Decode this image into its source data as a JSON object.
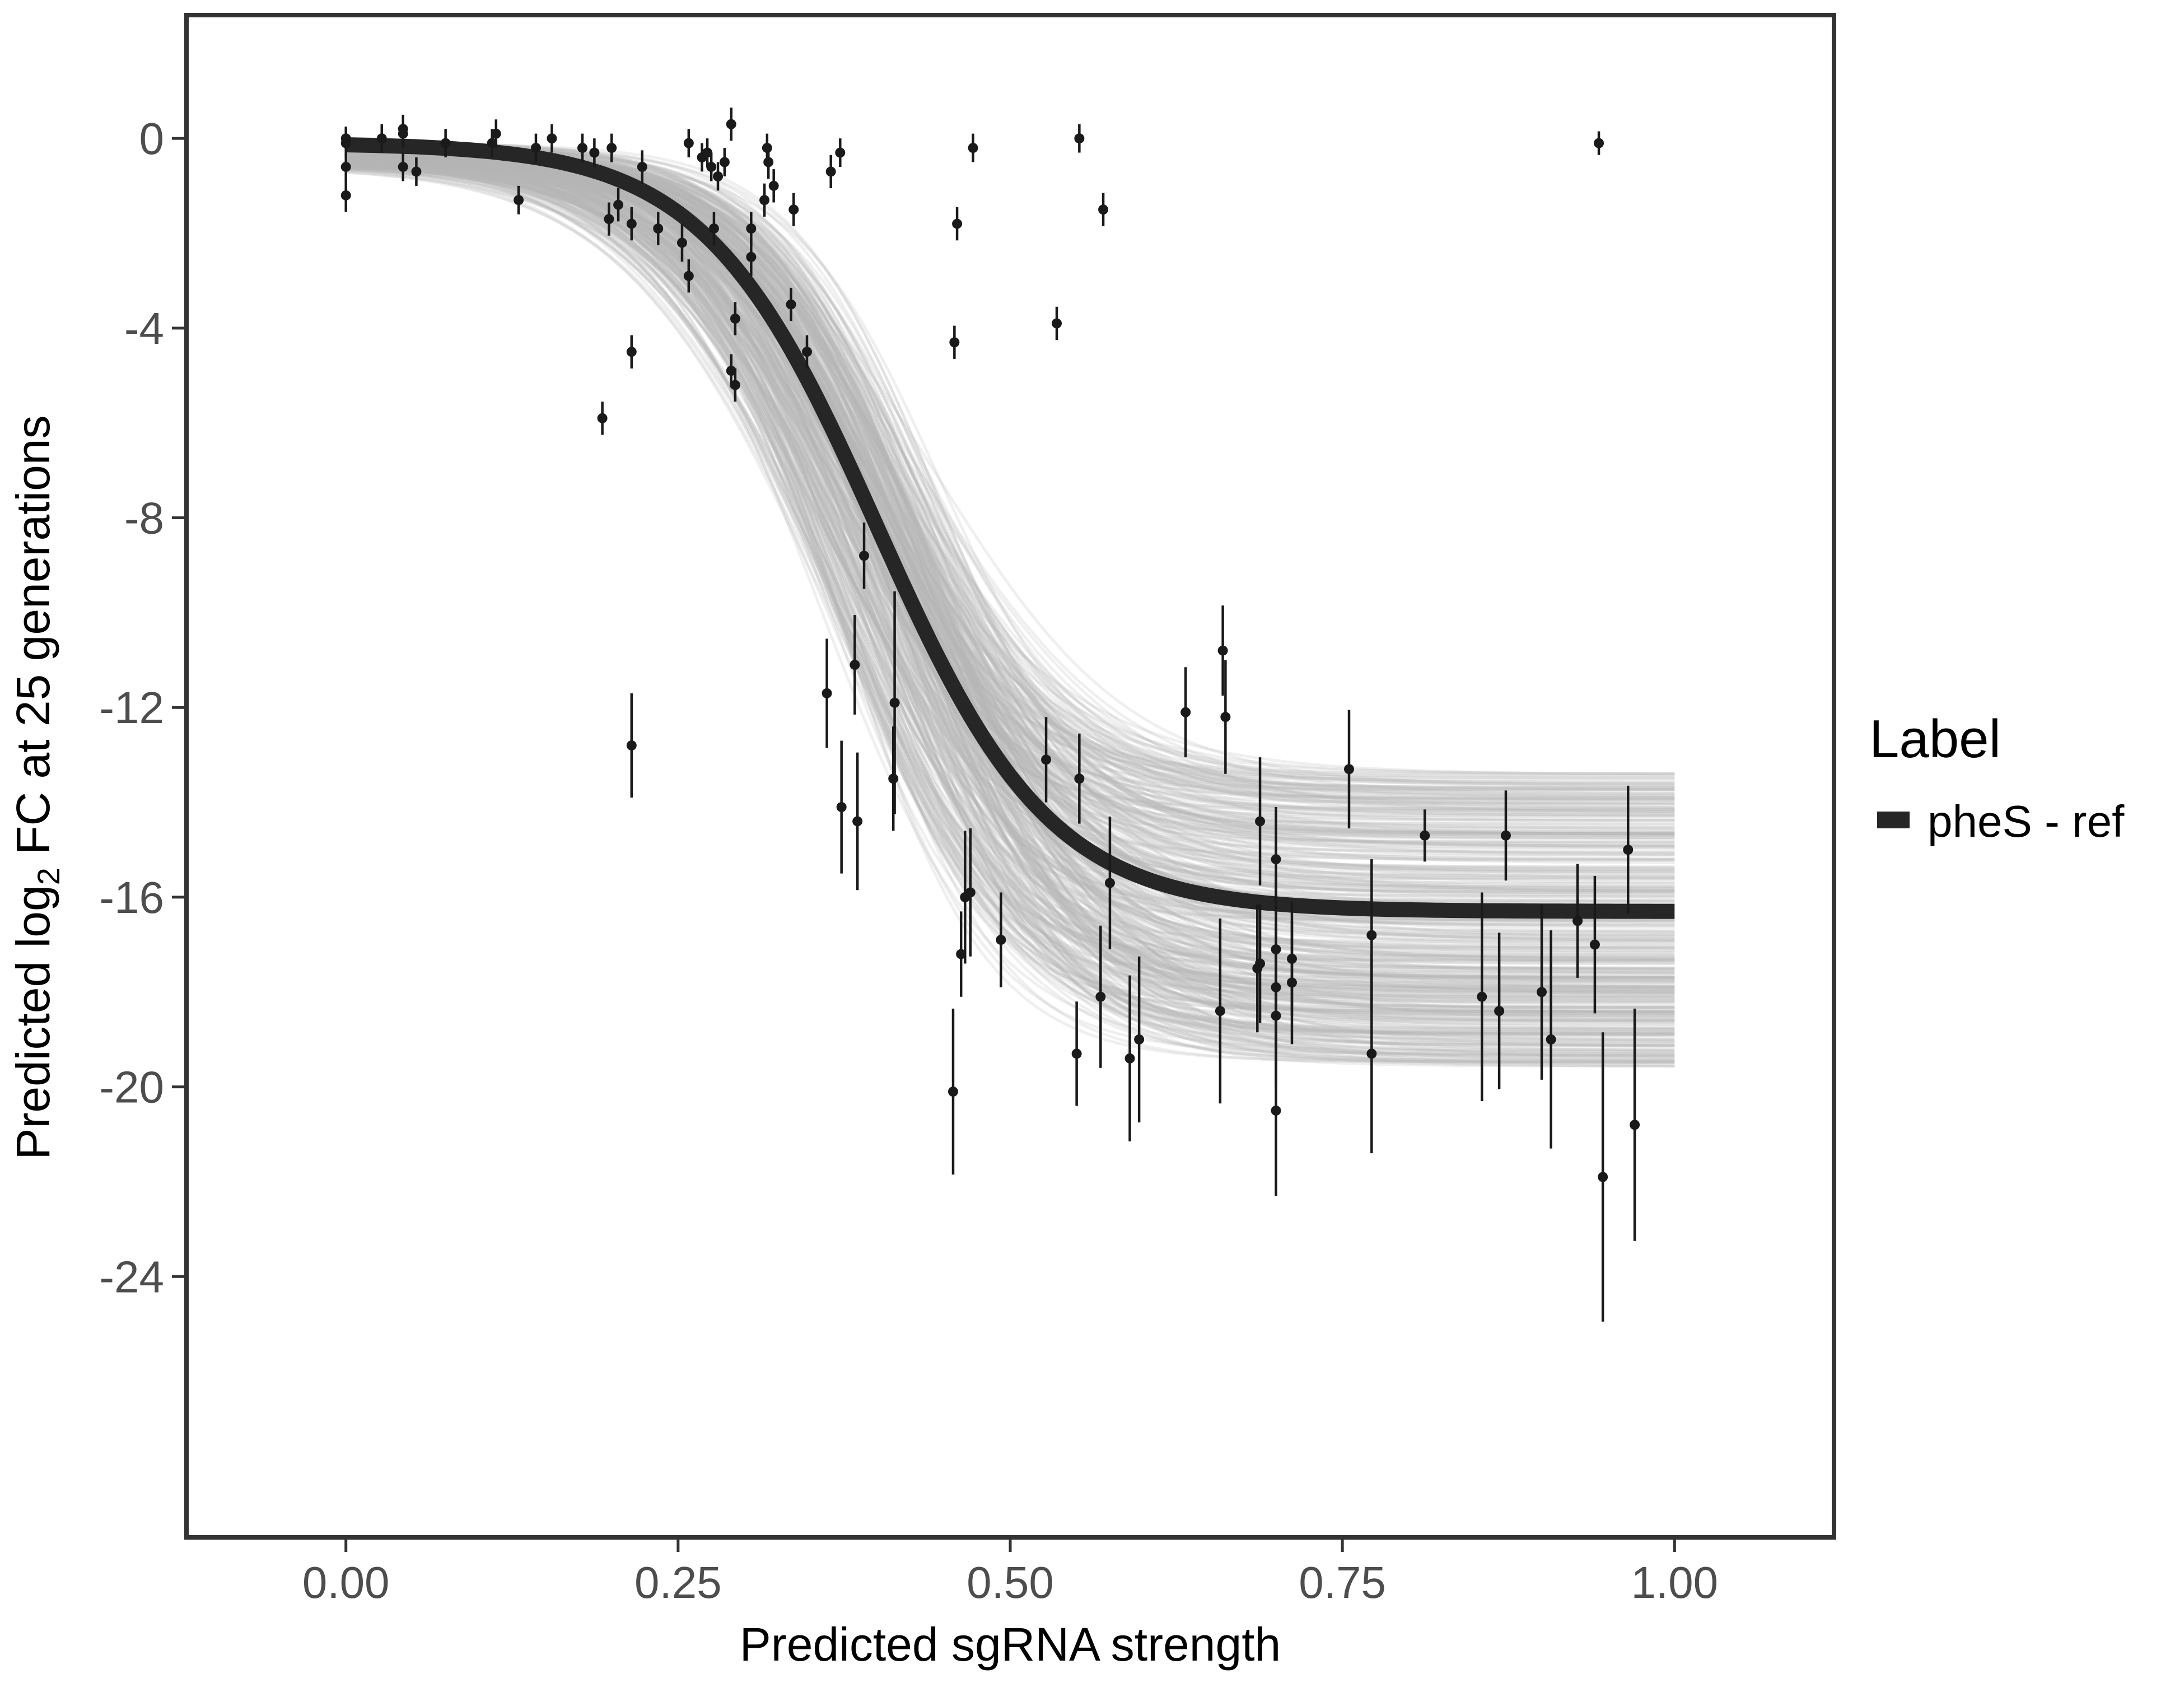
{
  "chart_data": {
    "type": "scatter",
    "xlabel": "Predicted sgRNA strength",
    "ylabel_parts": {
      "before": "Predicted  log",
      "sub": "2",
      "after": " FC at 25 generations"
    },
    "xlim": [
      -0.12,
      1.12
    ],
    "ylim": [
      -29.5,
      2.6
    ],
    "x_ticks": [
      0,
      0.25,
      0.5,
      0.75,
      1
    ],
    "x_tick_labels": [
      "0.00",
      "0.25",
      "0.50",
      "0.75",
      "1.00"
    ],
    "y_ticks": [
      0,
      -4,
      -8,
      -12,
      -16,
      -20,
      -24
    ],
    "y_tick_labels": [
      "0",
      "-4",
      "-8",
      "-12",
      "-16",
      "-20",
      "-24"
    ],
    "grid": false,
    "legend": {
      "title": "Label",
      "position": "right",
      "entries": [
        {
          "label": "pheS - ref",
          "color": "#262626"
        }
      ]
    },
    "colors": {
      "fit_line": "#262626",
      "posterior_band": "#b4b4b4",
      "points": "#1a1a1a",
      "frame": "#333333"
    },
    "fit_curve": {
      "series": "pheS - ref",
      "x_range": [
        0,
        1
      ],
      "y_at_zero": -0.1,
      "y_floor": -16.3,
      "midpoint_x": 0.4,
      "log_slope": 15.4
    },
    "posterior_band": {
      "x_range": [
        0,
        1
      ],
      "lower_at_1": -19.6,
      "upper_at_1": -13.4
    },
    "points": [
      {
        "x": 0.0,
        "y": -1.2,
        "err": 0.35
      },
      {
        "x": 0.0,
        "y": -0.6,
        "err": 0.3
      },
      {
        "x": 0.0,
        "y": -0.1,
        "err": 0.3
      },
      {
        "x": 0.0,
        "y": 0.0,
        "err": 0.25
      },
      {
        "x": 0.027,
        "y": 0.0,
        "err": 0.3
      },
      {
        "x": 0.043,
        "y": -0.6,
        "err": 0.3
      },
      {
        "x": 0.043,
        "y": 0.1,
        "err": 0.3
      },
      {
        "x": 0.043,
        "y": 0.2,
        "err": 0.3
      },
      {
        "x": 0.053,
        "y": -0.7,
        "err": 0.3
      },
      {
        "x": 0.075,
        "y": -0.1,
        "err": 0.3
      },
      {
        "x": 0.11,
        "y": -0.1,
        "err": 0.3
      },
      {
        "x": 0.113,
        "y": 0.1,
        "err": 0.3
      },
      {
        "x": 0.13,
        "y": -1.3,
        "err": 0.3
      },
      {
        "x": 0.143,
        "y": -0.2,
        "err": 0.3
      },
      {
        "x": 0.155,
        "y": 0.0,
        "err": 0.3
      },
      {
        "x": 0.178,
        "y": -0.2,
        "err": 0.3
      },
      {
        "x": 0.187,
        "y": -0.3,
        "err": 0.3
      },
      {
        "x": 0.193,
        "y": -5.9,
        "err": 0.35
      },
      {
        "x": 0.198,
        "y": -1.7,
        "err": 0.35
      },
      {
        "x": 0.2,
        "y": -0.2,
        "err": 0.3
      },
      {
        "x": 0.205,
        "y": -1.4,
        "err": 0.35
      },
      {
        "x": 0.215,
        "y": -4.5,
        "err": 0.35
      },
      {
        "x": 0.215,
        "y": -1.8,
        "err": 0.35
      },
      {
        "x": 0.215,
        "y": -12.8,
        "err": 1.1
      },
      {
        "x": 0.223,
        "y": -0.6,
        "err": 0.35
      },
      {
        "x": 0.235,
        "y": -1.9,
        "err": 0.35
      },
      {
        "x": 0.253,
        "y": -2.2,
        "err": 0.4
      },
      {
        "x": 0.258,
        "y": -2.9,
        "err": 0.35
      },
      {
        "x": 0.258,
        "y": -0.1,
        "err": 0.3
      },
      {
        "x": 0.268,
        "y": -0.4,
        "err": 0.3
      },
      {
        "x": 0.272,
        "y": -0.3,
        "err": 0.3
      },
      {
        "x": 0.275,
        "y": -0.6,
        "err": 0.3
      },
      {
        "x": 0.277,
        "y": -1.9,
        "err": 0.35
      },
      {
        "x": 0.28,
        "y": -0.8,
        "err": 0.3
      },
      {
        "x": 0.285,
        "y": -0.5,
        "err": 0.3
      },
      {
        "x": 0.29,
        "y": -4.9,
        "err": 0.35
      },
      {
        "x": 0.29,
        "y": 0.3,
        "err": 0.35
      },
      {
        "x": 0.293,
        "y": -3.8,
        "err": 0.35
      },
      {
        "x": 0.293,
        "y": -5.2,
        "err": 0.35
      },
      {
        "x": 0.305,
        "y": -1.9,
        "err": 0.35
      },
      {
        "x": 0.305,
        "y": -2.5,
        "err": 0.4
      },
      {
        "x": 0.315,
        "y": -1.3,
        "err": 0.35
      },
      {
        "x": 0.317,
        "y": -0.2,
        "err": 0.3
      },
      {
        "x": 0.318,
        "y": -0.5,
        "err": 0.35
      },
      {
        "x": 0.322,
        "y": -1.0,
        "err": 0.35
      },
      {
        "x": 0.335,
        "y": -3.5,
        "err": 0.35
      },
      {
        "x": 0.337,
        "y": -1.5,
        "err": 0.35
      },
      {
        "x": 0.347,
        "y": -4.5,
        "err": 0.35
      },
      {
        "x": 0.362,
        "y": -11.7,
        "err": 1.15
      },
      {
        "x": 0.365,
        "y": -0.7,
        "err": 0.35
      },
      {
        "x": 0.372,
        "y": -0.3,
        "err": 0.3
      },
      {
        "x": 0.373,
        "y": -14.1,
        "err": 1.4
      },
      {
        "x": 0.383,
        "y": -11.1,
        "err": 1.05
      },
      {
        "x": 0.385,
        "y": -14.4,
        "err": 1.45
      },
      {
        "x": 0.39,
        "y": -8.8,
        "err": 0.7
      },
      {
        "x": 0.412,
        "y": -13.5,
        "err": 1.1
      },
      {
        "x": 0.413,
        "y": -11.9,
        "err": 2.35
      },
      {
        "x": 0.457,
        "y": -20.1,
        "err": 1.75
      },
      {
        "x": 0.458,
        "y": -4.3,
        "err": 0.35
      },
      {
        "x": 0.46,
        "y": -1.8,
        "err": 0.35
      },
      {
        "x": 0.463,
        "y": -17.2,
        "err": 0.9
      },
      {
        "x": 0.466,
        "y": -16.0,
        "err": 1.4
      },
      {
        "x": 0.47,
        "y": -15.9,
        "err": 1.35
      },
      {
        "x": 0.472,
        "y": -0.2,
        "err": 0.3
      },
      {
        "x": 0.493,
        "y": -16.9,
        "err": 1.0
      },
      {
        "x": 0.527,
        "y": -13.1,
        "err": 0.9
      },
      {
        "x": 0.535,
        "y": -3.9,
        "err": 0.35
      },
      {
        "x": 0.55,
        "y": -19.3,
        "err": 1.1
      },
      {
        "x": 0.552,
        "y": -13.5,
        "err": 0.95
      },
      {
        "x": 0.552,
        "y": 0.0,
        "err": 0.3
      },
      {
        "x": 0.568,
        "y": -18.1,
        "err": 1.5
      },
      {
        "x": 0.57,
        "y": -1.5,
        "err": 0.35
      },
      {
        "x": 0.575,
        "y": -15.7,
        "err": 1.4
      },
      {
        "x": 0.59,
        "y": -19.4,
        "err": 1.75
      },
      {
        "x": 0.597,
        "y": -19.0,
        "err": 1.75
      },
      {
        "x": 0.632,
        "y": -12.1,
        "err": 0.95
      },
      {
        "x": 0.658,
        "y": -18.4,
        "err": 1.95
      },
      {
        "x": 0.66,
        "y": -10.8,
        "err": 0.95
      },
      {
        "x": 0.662,
        "y": -12.2,
        "err": 1.2
      },
      {
        "x": 0.686,
        "y": -17.5,
        "err": 1.35
      },
      {
        "x": 0.688,
        "y": -14.4,
        "err": 1.35
      },
      {
        "x": 0.688,
        "y": -17.4,
        "err": 1.25
      },
      {
        "x": 0.7,
        "y": -20.5,
        "err": 1.8
      },
      {
        "x": 0.7,
        "y": -17.9,
        "err": 1.35
      },
      {
        "x": 0.7,
        "y": -15.2,
        "err": 1.1
      },
      {
        "x": 0.7,
        "y": -18.5,
        "err": 1.5
      },
      {
        "x": 0.7,
        "y": -17.1,
        "err": 1.45
      },
      {
        "x": 0.712,
        "y": -17.3,
        "err": 1.2
      },
      {
        "x": 0.712,
        "y": -17.8,
        "err": 1.3
      },
      {
        "x": 0.755,
        "y": -13.3,
        "err": 1.25
      },
      {
        "x": 0.772,
        "y": -16.8,
        "err": 1.6
      },
      {
        "x": 0.772,
        "y": -19.3,
        "err": 2.1
      },
      {
        "x": 0.812,
        "y": -14.7,
        "err": 0.55
      },
      {
        "x": 0.855,
        "y": -18.1,
        "err": 2.2
      },
      {
        "x": 0.868,
        "y": -18.4,
        "err": 1.65
      },
      {
        "x": 0.873,
        "y": -14.7,
        "err": 0.95
      },
      {
        "x": 0.9,
        "y": -18.0,
        "err": 1.85
      },
      {
        "x": 0.907,
        "y": -19.0,
        "err": 2.3
      },
      {
        "x": 0.927,
        "y": -16.5,
        "err": 1.2
      },
      {
        "x": 0.94,
        "y": -17.0,
        "err": 1.45
      },
      {
        "x": 0.943,
        "y": -0.1,
        "err": 0.25
      },
      {
        "x": 0.946,
        "y": -21.9,
        "err": 3.05
      },
      {
        "x": 0.965,
        "y": -15.0,
        "err": 1.35
      },
      {
        "x": 0.97,
        "y": -20.8,
        "err": 2.45
      }
    ]
  }
}
